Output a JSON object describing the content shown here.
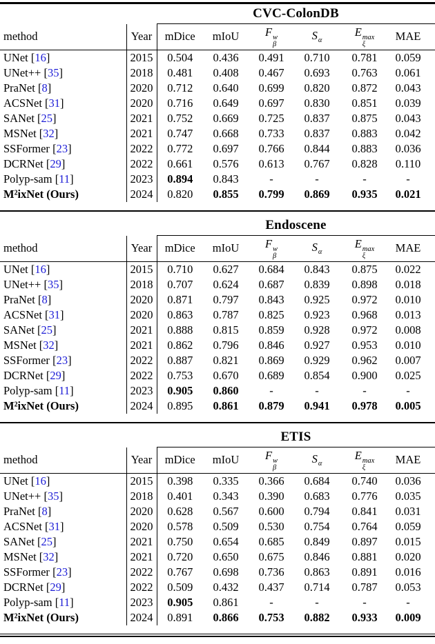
{
  "colors": {
    "citation_link": "#1c1cd6",
    "rule": "#000000"
  },
  "header": {
    "method": "method",
    "year": "Year",
    "metrics": [
      {
        "label": "mDice"
      },
      {
        "label": "mIoU"
      },
      {
        "base": "F",
        "sup": "w",
        "sub": "β"
      },
      {
        "base": "S",
        "sub": "α"
      },
      {
        "base": "E",
        "sup": "max",
        "sub": "ξ"
      },
      {
        "label": "MAE"
      }
    ]
  },
  "tables": [
    {
      "title": "CVC-ColonDB",
      "rows": [
        {
          "method": "UNet",
          "cite": "16",
          "year": "2015",
          "method_bold": false,
          "values": [
            "0.504",
            "0.436",
            "0.491",
            "0.710",
            "0.781",
            "0.059"
          ],
          "bold": [
            false,
            false,
            false,
            false,
            false,
            false
          ]
        },
        {
          "method": "UNet++",
          "cite": "35",
          "year": "2018",
          "method_bold": false,
          "values": [
            "0.481",
            "0.408",
            "0.467",
            "0.693",
            "0.763",
            "0.061"
          ],
          "bold": [
            false,
            false,
            false,
            false,
            false,
            false
          ]
        },
        {
          "method": "PraNet",
          "cite": "8",
          "year": "2020",
          "method_bold": false,
          "values": [
            "0.712",
            "0.640",
            "0.699",
            "0.820",
            "0.872",
            "0.043"
          ],
          "bold": [
            false,
            false,
            false,
            false,
            false,
            false
          ]
        },
        {
          "method": "ACSNet",
          "cite": "31",
          "year": "2020",
          "method_bold": false,
          "values": [
            "0.716",
            "0.649",
            "0.697",
            "0.830",
            "0.851",
            "0.039"
          ],
          "bold": [
            false,
            false,
            false,
            false,
            false,
            false
          ]
        },
        {
          "method": "SANet",
          "cite": "25",
          "year": "2021",
          "method_bold": false,
          "values": [
            "0.752",
            "0.669",
            "0.725",
            "0.837",
            "0.875",
            "0.043"
          ],
          "bold": [
            false,
            false,
            false,
            false,
            false,
            false
          ]
        },
        {
          "method": "MSNet",
          "cite": "32",
          "year": "2021",
          "method_bold": false,
          "values": [
            "0.747",
            "0.668",
            "0.733",
            "0.837",
            "0.883",
            "0.042"
          ],
          "bold": [
            false,
            false,
            false,
            false,
            false,
            false
          ]
        },
        {
          "method": "SSFormer",
          "cite": "23",
          "year": "2022",
          "method_bold": false,
          "values": [
            "0.772",
            "0.697",
            "0.766",
            "0.844",
            "0.883",
            "0.036"
          ],
          "bold": [
            false,
            false,
            false,
            false,
            false,
            false
          ]
        },
        {
          "method": "DCRNet",
          "cite": "29",
          "year": "2022",
          "method_bold": false,
          "values": [
            "0.661",
            "0.576",
            "0.613",
            "0.767",
            "0.828",
            "0.110"
          ],
          "bold": [
            false,
            false,
            false,
            false,
            false,
            false
          ]
        },
        {
          "method": "Polyp-sam",
          "cite": "11",
          "year": "2023",
          "method_bold": false,
          "values": [
            "0.894",
            "0.843",
            "-",
            "-",
            "-",
            "-"
          ],
          "bold": [
            true,
            false,
            false,
            false,
            false,
            false
          ]
        },
        {
          "method": "M²ixNet (Ours)",
          "cite": "",
          "year": "2024",
          "method_bold": true,
          "values": [
            "0.820",
            "0.855",
            "0.799",
            "0.869",
            "0.935",
            "0.021"
          ],
          "bold": [
            false,
            true,
            true,
            true,
            true,
            true
          ]
        }
      ]
    },
    {
      "title": "Endoscene",
      "rows": [
        {
          "method": "UNet",
          "cite": "16",
          "year": "2015",
          "method_bold": false,
          "values": [
            "0.710",
            "0.627",
            "0.684",
            "0.843",
            "0.875",
            "0.022"
          ],
          "bold": [
            false,
            false,
            false,
            false,
            false,
            false
          ]
        },
        {
          "method": "UNet++",
          "cite": "35",
          "year": "2018",
          "method_bold": false,
          "values": [
            "0.707",
            "0.624",
            "0.687",
            "0.839",
            "0.898",
            "0.018"
          ],
          "bold": [
            false,
            false,
            false,
            false,
            false,
            false
          ]
        },
        {
          "method": "PraNet",
          "cite": "8",
          "year": "2020",
          "method_bold": false,
          "values": [
            "0.871",
            "0.797",
            "0.843",
            "0.925",
            "0.972",
            "0.010"
          ],
          "bold": [
            false,
            false,
            false,
            false,
            false,
            false
          ]
        },
        {
          "method": "ACSNet",
          "cite": "31",
          "year": "2020",
          "method_bold": false,
          "values": [
            "0.863",
            "0.787",
            "0.825",
            "0.923",
            "0.968",
            "0.013"
          ],
          "bold": [
            false,
            false,
            false,
            false,
            false,
            false
          ]
        },
        {
          "method": "SANet",
          "cite": "25",
          "year": "2021",
          "method_bold": false,
          "values": [
            "0.888",
            "0.815",
            "0.859",
            "0.928",
            "0.972",
            "0.008"
          ],
          "bold": [
            false,
            false,
            false,
            false,
            false,
            false
          ]
        },
        {
          "method": "MSNet",
          "cite": "32",
          "year": "2021",
          "method_bold": false,
          "values": [
            "0.862",
            "0.796",
            "0.846",
            "0.927",
            "0.953",
            "0.010"
          ],
          "bold": [
            false,
            false,
            false,
            false,
            false,
            false
          ]
        },
        {
          "method": "SSFormer",
          "cite": "23",
          "year": "2022",
          "method_bold": false,
          "values": [
            "0.887",
            "0.821",
            "0.869",
            "0.929",
            "0.962",
            "0.007"
          ],
          "bold": [
            false,
            false,
            false,
            false,
            false,
            false
          ]
        },
        {
          "method": "DCRNet",
          "cite": "29",
          "year": "2022",
          "method_bold": false,
          "values": [
            "0.753",
            "0.670",
            "0.689",
            "0.854",
            "0.900",
            "0.025"
          ],
          "bold": [
            false,
            false,
            false,
            false,
            false,
            false
          ]
        },
        {
          "method": "Polyp-sam",
          "cite": "11",
          "year": "2023",
          "method_bold": false,
          "values": [
            "0.905",
            "0.860",
            "-",
            "-",
            "-",
            "-"
          ],
          "bold": [
            true,
            true,
            false,
            false,
            false,
            false
          ]
        },
        {
          "method": "M²ixNet (Ours)",
          "cite": "",
          "year": "2024",
          "method_bold": true,
          "values": [
            "0.895",
            "0.861",
            "0.879",
            "0.941",
            "0.978",
            "0.005"
          ],
          "bold": [
            false,
            true,
            true,
            true,
            true,
            true
          ]
        }
      ]
    },
    {
      "title": "ETIS",
      "rows": [
        {
          "method": "UNet",
          "cite": "16",
          "year": "2015",
          "method_bold": false,
          "values": [
            "0.398",
            "0.335",
            "0.366",
            "0.684",
            "0.740",
            "0.036"
          ],
          "bold": [
            false,
            false,
            false,
            false,
            false,
            false
          ]
        },
        {
          "method": "UNet++",
          "cite": "35",
          "year": "2018",
          "method_bold": false,
          "values": [
            "0.401",
            "0.343",
            "0.390",
            "0.683",
            "0.776",
            "0.035"
          ],
          "bold": [
            false,
            false,
            false,
            false,
            false,
            false
          ]
        },
        {
          "method": "PraNet",
          "cite": "8",
          "year": "2020",
          "method_bold": false,
          "values": [
            "0.628",
            "0.567",
            "0.600",
            "0.794",
            "0.841",
            "0.031"
          ],
          "bold": [
            false,
            false,
            false,
            false,
            false,
            false
          ]
        },
        {
          "method": "ACSNet",
          "cite": "31",
          "year": "2020",
          "method_bold": false,
          "values": [
            "0.578",
            "0.509",
            "0.530",
            "0.754",
            "0.764",
            "0.059"
          ],
          "bold": [
            false,
            false,
            false,
            false,
            false,
            false
          ]
        },
        {
          "method": "SANet",
          "cite": "25",
          "year": "2021",
          "method_bold": false,
          "values": [
            "0.750",
            "0.654",
            "0.685",
            "0.849",
            "0.897",
            "0.015"
          ],
          "bold": [
            false,
            false,
            false,
            false,
            false,
            false
          ]
        },
        {
          "method": "MSNet",
          "cite": "32",
          "year": "2021",
          "method_bold": false,
          "values": [
            "0.720",
            "0.650",
            "0.675",
            "0.846",
            "0.881",
            "0.020"
          ],
          "bold": [
            false,
            false,
            false,
            false,
            false,
            false
          ]
        },
        {
          "method": "SSFormer",
          "cite": "23",
          "year": "2022",
          "method_bold": false,
          "values": [
            "0.767",
            "0.698",
            "0.736",
            "0.863",
            "0.891",
            "0.016"
          ],
          "bold": [
            false,
            false,
            false,
            false,
            false,
            false
          ]
        },
        {
          "method": "DCRNet",
          "cite": "29",
          "year": "2022",
          "method_bold": false,
          "values": [
            "0.509",
            "0.432",
            "0.437",
            "0.714",
            "0.787",
            "0.053"
          ],
          "bold": [
            false,
            false,
            false,
            false,
            false,
            false
          ]
        },
        {
          "method": "Polyp-sam",
          "cite": "11",
          "year": "2023",
          "method_bold": false,
          "values": [
            "0.905",
            "0.861",
            "-",
            "-",
            "-",
            "-"
          ],
          "bold": [
            true,
            false,
            false,
            false,
            false,
            false
          ]
        },
        {
          "method": "M²ixNet (Ours)",
          "cite": "",
          "year": "2024",
          "method_bold": true,
          "values": [
            "0.891",
            "0.866",
            "0.753",
            "0.882",
            "0.933",
            "0.009"
          ],
          "bold": [
            false,
            true,
            true,
            true,
            true,
            true
          ]
        }
      ]
    }
  ]
}
